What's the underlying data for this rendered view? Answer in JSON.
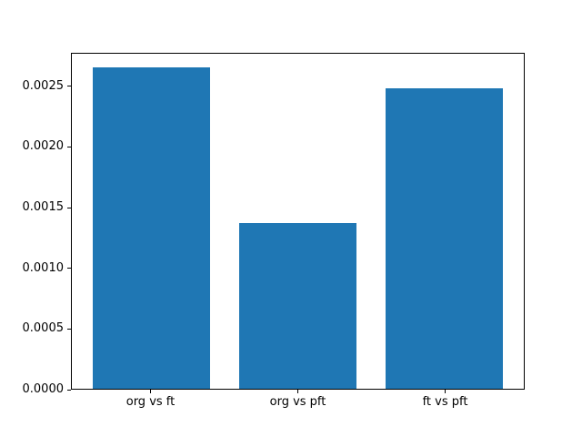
{
  "chart_data": {
    "type": "bar",
    "title": "",
    "xlabel": "",
    "ylabel": "",
    "categories": [
      "org vs ft",
      "org vs pft",
      "ft vs pft"
    ],
    "values": [
      0.00266,
      0.00137,
      0.00249
    ],
    "bar_color": "#1f77b4",
    "ylim": [
      0,
      0.002775
    ],
    "yticks": [
      0.0,
      0.0005,
      0.001,
      0.0015,
      0.002,
      0.0025
    ],
    "ytick_labels": [
      "0.0000",
      "0.0005",
      "0.0010",
      "0.0015",
      "0.0020",
      "0.0025"
    ],
    "grid": false,
    "legend": null,
    "frame_color": "#000000",
    "background_color": "#ffffff",
    "bar_width_fraction": 0.8
  }
}
